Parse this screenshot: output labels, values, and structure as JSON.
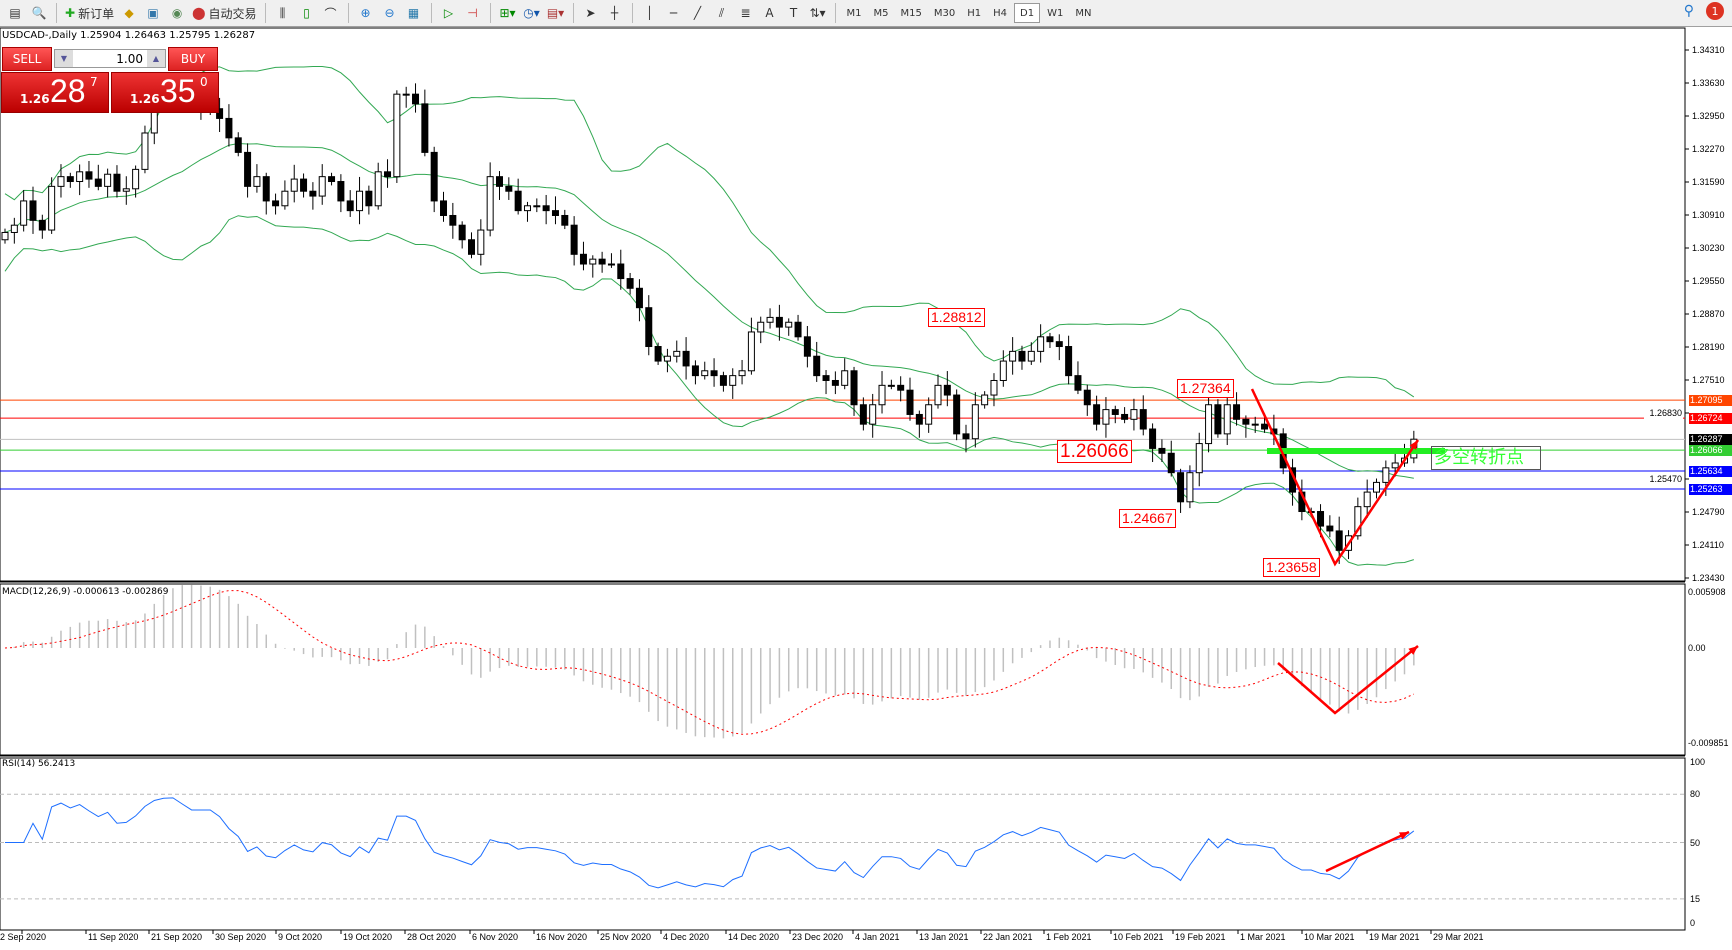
{
  "toolbar": {
    "new_order": "新订单",
    "auto_trading": "自动交易",
    "icons": [
      "new-chart-icon",
      "profiles-icon",
      "new-order-icon",
      "metaeditor-icon",
      "navigator-icon",
      "signals-icon",
      "auto-trading-icon",
      "bar-chart-icon",
      "candlestick-icon",
      "line-chart-icon",
      "zoom-in-icon",
      "zoom-out-icon",
      "tile-windows-icon",
      "auto-scroll-icon",
      "chart-shift-icon",
      "indicators-icon",
      "periods-icon",
      "templates-icon",
      "cursor-icon",
      "crosshair-icon",
      "vertical-line-icon",
      "horizontal-line-icon",
      "trendline-icon",
      "equidistant-channel-icon",
      "fibonacci-icon",
      "text-icon",
      "text-label-icon",
      "arrows-icon"
    ],
    "timeframes": [
      "M1",
      "M5",
      "M15",
      "M30",
      "H1",
      "H4",
      "D1",
      "W1",
      "MN"
    ],
    "active_timeframe": "D1",
    "notification_count": "1"
  },
  "header": {
    "text": "USDCAD-,Daily  1.25904 1.26463 1.25795 1.26287"
  },
  "trade_panel": {
    "sell_label": "SELL",
    "buy_label": "BUY",
    "lot": "1.00",
    "sell_prefix": "1.26",
    "sell_big": "28",
    "sell_sup": "7",
    "buy_prefix": "1.26",
    "buy_big": "35",
    "buy_sup": "0"
  },
  "chart_data": {
    "type": "candlestick",
    "symbol": "USDCAD-",
    "timeframe": "Daily",
    "ylim": [
      1.2343,
      1.3431
    ],
    "price_ticks": [
      "1.34310",
      "1.33630",
      "1.32950",
      "1.32270",
      "1.31590",
      "1.30910",
      "1.30230",
      "1.29550",
      "1.28870",
      "1.28190",
      "1.27510",
      "1.26830",
      "1.25470",
      "1.24790",
      "1.24110",
      "1.23430"
    ],
    "date_labels": [
      "2 Sep 2020",
      "11 Sep 2020",
      "21 Sep 2020",
      "30 Sep 2020",
      "9 Oct 2020",
      "19 Oct 2020",
      "28 Oct 2020",
      "6 Nov 2020",
      "16 Nov 2020",
      "25 Nov 2020",
      "4 Dec 2020",
      "14 Dec 2020",
      "23 Dec 2020",
      "4 Jan 2021",
      "13 Jan 2021",
      "22 Jan 2021",
      "1 Feb 2021",
      "10 Feb 2021",
      "19 Feb 2021",
      "1 Mar 2021",
      "10 Mar 2021",
      "19 Mar 2021",
      "29 Mar 2021"
    ],
    "closes": [
      1.3055,
      1.307,
      1.312,
      1.308,
      1.306,
      1.315,
      1.317,
      1.316,
      1.318,
      1.3165,
      1.315,
      1.3175,
      1.314,
      1.3145,
      1.3185,
      1.326,
      1.332,
      1.3345,
      1.335,
      1.333,
      1.331,
      1.331,
      1.331,
      1.329,
      1.325,
      1.322,
      1.315,
      1.317,
      1.312,
      1.311,
      1.314,
      1.3165,
      1.314,
      1.313,
      1.317,
      1.316,
      1.312,
      1.31,
      1.314,
      1.311,
      1.318,
      1.317,
      1.334,
      1.334,
      1.332,
      1.322,
      1.312,
      1.309,
      1.307,
      1.304,
      1.301,
      1.306,
      1.317,
      1.315,
      1.314,
      1.31,
      1.311,
      1.311,
      1.31,
      1.309,
      1.307,
      1.301,
      1.299,
      1.3,
      1.299,
      1.299,
      1.296,
      1.294,
      1.29,
      1.282,
      1.279,
      1.28,
      1.281,
      1.278,
      1.276,
      1.277,
      1.276,
      1.274,
      1.276,
      1.277,
      1.285,
      1.287,
      1.288,
      1.286,
      1.287,
      1.284,
      1.28,
      1.276,
      1.275,
      1.274,
      1.277,
      1.27,
      1.266,
      1.27,
      1.274,
      1.274,
      1.273,
      1.268,
      1.266,
      1.27,
      1.274,
      1.272,
      1.264,
      1.263,
      1.27,
      1.272,
      1.275,
      1.279,
      1.281,
      1.279,
      1.281,
      1.284,
      1.283,
      1.282,
      1.276,
      1.273,
      1.27,
      1.266,
      1.269,
      1.268,
      1.267,
      1.269,
      1.265,
      1.261,
      1.26,
      1.256,
      1.25,
      1.256,
      1.262,
      1.27,
      1.264,
      1.27,
      1.267,
      1.266,
      1.266,
      1.265,
      1.264,
      1.257,
      1.252,
      1.248,
      1.248,
      1.245,
      1.244,
      1.24,
      1.243,
      1.249,
      1.252,
      1.254,
      1.257,
      1.258,
      1.259,
      1.2629
    ],
    "last_bar": {
      "open": 1.25904,
      "high": 1.26463,
      "low": 1.25795,
      "close": 1.26287
    },
    "indicators": {
      "bollinger": {
        "period": 20,
        "deviation": 2,
        "color": "#32a852"
      },
      "macd": {
        "label": "MACD(12,26,9) -0.000613 -0.002869",
        "ticks": [
          "0.005908",
          "0.00",
          "-0.009851"
        ],
        "ylim": [
          -0.009851,
          0.005908
        ]
      },
      "rsi": {
        "label": "RSI(14) 56.2413",
        "ticks": [
          "100",
          "80",
          "50",
          "15",
          "0"
        ],
        "levels": [
          80,
          50,
          15
        ]
      }
    },
    "hlines": [
      {
        "price": 1.27095,
        "label": "1.27095",
        "color": "#ff4500"
      },
      {
        "price": 1.26724,
        "label": "1.26724",
        "color": "#ff0000"
      },
      {
        "price": 1.26287,
        "label": "1.26287",
        "color": "#c0c0c0",
        "tag": "#000000"
      },
      {
        "price": 1.26066,
        "label": "1.26066",
        "color": "#32cd32"
      },
      {
        "price": 1.25634,
        "label": "1.25634",
        "color": "#0000ff"
      },
      {
        "price": 1.25263,
        "label": "1.25263",
        "color": "#0000ff"
      }
    ],
    "annotations": [
      "1.28812",
      "1.27364",
      "1.26066",
      "1.24667",
      "1.23658"
    ],
    "pivot_label": "多空转折点"
  }
}
